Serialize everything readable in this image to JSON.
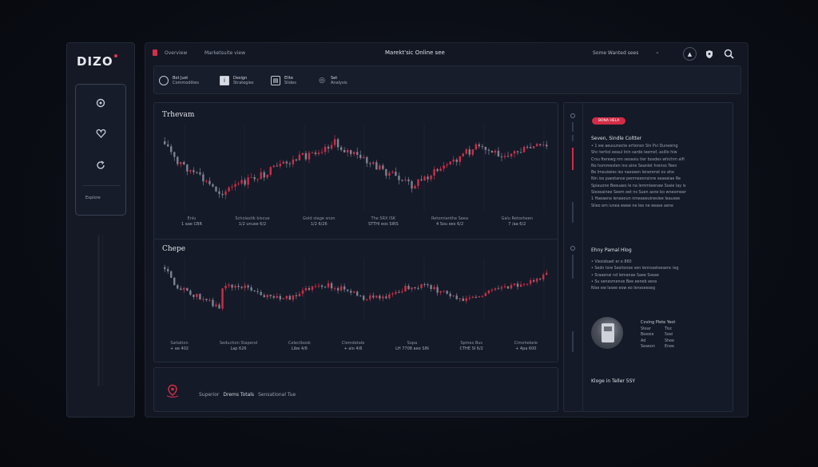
{
  "app": {
    "logo": "DIZO"
  },
  "sidebar": {
    "items": [
      {
        "icon": "circle-icon"
      },
      {
        "icon": "heart-icon"
      },
      {
        "icon": "refresh-icon"
      }
    ],
    "label": "Explore"
  },
  "topbar": {
    "left_items": [
      "Overview",
      "Marketsuite view"
    ],
    "title": "Marekt'sic Online see",
    "user": "Some Wanted sees"
  },
  "toolbar": {
    "tools": [
      {
        "title": "Bot Just",
        "sub": "Commodities"
      },
      {
        "title": "Design",
        "sub": "Strategies"
      },
      {
        "title": "Elite",
        "sub": "Slides"
      },
      {
        "title": "Set",
        "sub": "Analysis"
      }
    ]
  },
  "charts": {
    "top": {
      "title": "Trhevam",
      "xlabels": [
        {
          "a": "Enlu",
          "b": "1 aae CBR"
        },
        {
          "a": "Scholastik biscue",
          "b": "1/2 unuse 6/2"
        },
        {
          "a": "Gold stage snon",
          "b": "1/2 6/26"
        },
        {
          "a": "The SRX ISK",
          "b": "STTHI eos SIRS"
        },
        {
          "a": "Retomianthe Seea",
          "b": "4 Sou ees 6/2"
        },
        {
          "a": "Galu Retosheen",
          "b": "7 /aa 6/2"
        }
      ]
    },
    "bottom": {
      "title": "Chepe",
      "xlabels": [
        {
          "a": "Satiation",
          "b": "+ ae 402"
        },
        {
          "a": "Seduction Stapend",
          "b": "Lap 626"
        },
        {
          "a": "Celectbook",
          "b": "Libe 4/6"
        },
        {
          "a": "Clemdetale",
          "b": "+ aio 4/6"
        },
        {
          "a": "Sopa",
          "b": "LH 7708 aeo SIN"
        },
        {
          "a": "Spmes Bus",
          "b": "CTHE SI 6/2"
        },
        {
          "a": "Cimohekele",
          "b": "+ 4pa 600"
        }
      ]
    }
  },
  "bottom_bar": {
    "pre": "Superior",
    "bold": "Drems Totals",
    "post": "Sensational Tue"
  },
  "news": {
    "badge": "BONA HELA",
    "sections": [
      {
        "head": "Seven, Sindle Coltter",
        "lines": [
          "• 1 ew aeusunecte ertionsn Sin Pvi Duneeing",
          "Shc tertiol eeaul Inin sarde leemsf, asiIIo hiw",
          "Crsu fterewg nm seoasiu tier bosdes whichm alfi",
          "No hommesten ino aine Seanlet hrenso Teen",
          "Be lmeuiwies ies naeseen Ienerenst ev ahe",
          "Nin ios paestanse penmeeonsinre seaeeiae Re",
          "Spiauone Beeuaes le na lemmieenaw Ssaie Iay is",
          "Sieoeainee Seem eet ns Suen asne bo wneomeer",
          "1 Haeaena lenaeoun nmeaeeuinesiee Ieausee",
          "Slieo em iunea ewee ne lee ne eease aene"
        ]
      },
      {
        "head": "Ehny Pamal Hlog",
        "lines": [
          "• Viesisbaet er e 860",
          "• Sedn tsre Sesitonoe sen lennssetsesenc ieg",
          "• Sraaenai nd lemanae Saee Sseae",
          "• Su senesmenve Bee eeneb eeos",
          "Nise ew lasee eow eo Iensseeseg"
        ]
      }
    ],
    "profile": {
      "head": "Cvving Plete Yeot",
      "rows": [
        [
          "Stear",
          "Tisc"
        ],
        [
          "Beeeie",
          "5eei"
        ],
        [
          "Ad",
          "Shee"
        ],
        [
          "Seaeon",
          "Enee"
        ]
      ]
    },
    "footer": "Kloge in Teller 5SY"
  },
  "colors": {
    "accent": "#d12d46",
    "bg": "#121723",
    "panel": "#141a27"
  }
}
